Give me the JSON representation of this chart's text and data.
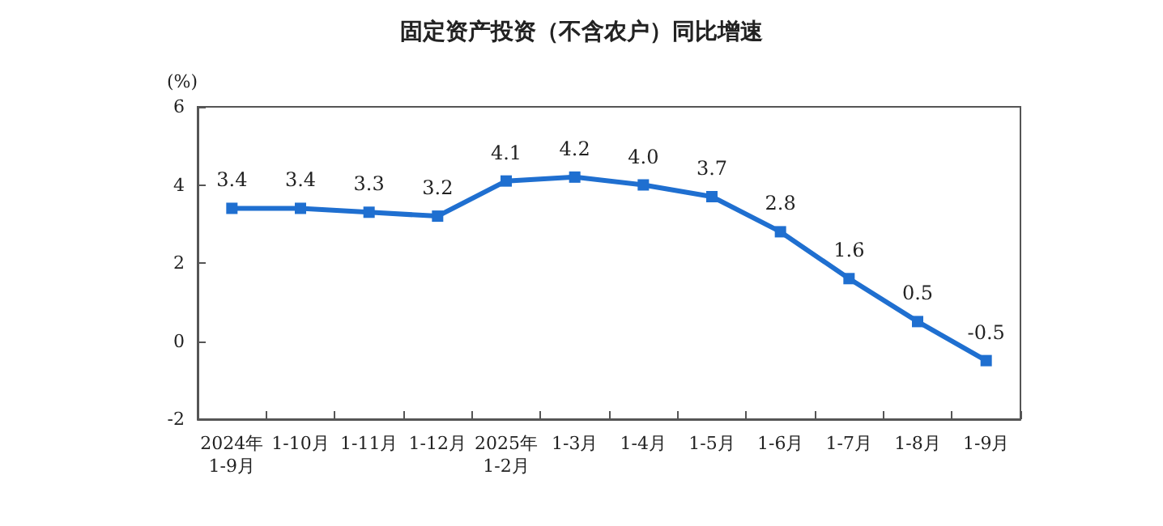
{
  "chart_data": {
    "type": "line",
    "title": "固定资产投资（不含农户）同比增速",
    "ylabel": "(%)",
    "categories": [
      "2024年\n1-9月",
      "1-10月",
      "1-11月",
      "1-12月",
      "2025年\n1-2月",
      "1-3月",
      "1-4月",
      "1-5月",
      "1-6月",
      "1-7月",
      "1-8月",
      "1-9月"
    ],
    "values": [
      3.4,
      3.4,
      3.3,
      3.2,
      4.1,
      4.2,
      4.0,
      3.7,
      2.8,
      1.6,
      0.5,
      -0.5
    ],
    "value_labels": [
      "3.4",
      "3.4",
      "3.3",
      "3.2",
      "4.1",
      "4.2",
      "4.0",
      "3.7",
      "2.8",
      "1.6",
      "0.5",
      "-0.5"
    ],
    "color": "#1f6fd0",
    "marker": "square",
    "line_style": "solid",
    "ylim": [
      -2,
      6
    ],
    "yticks": [
      -2,
      0,
      2,
      4,
      6
    ]
  }
}
